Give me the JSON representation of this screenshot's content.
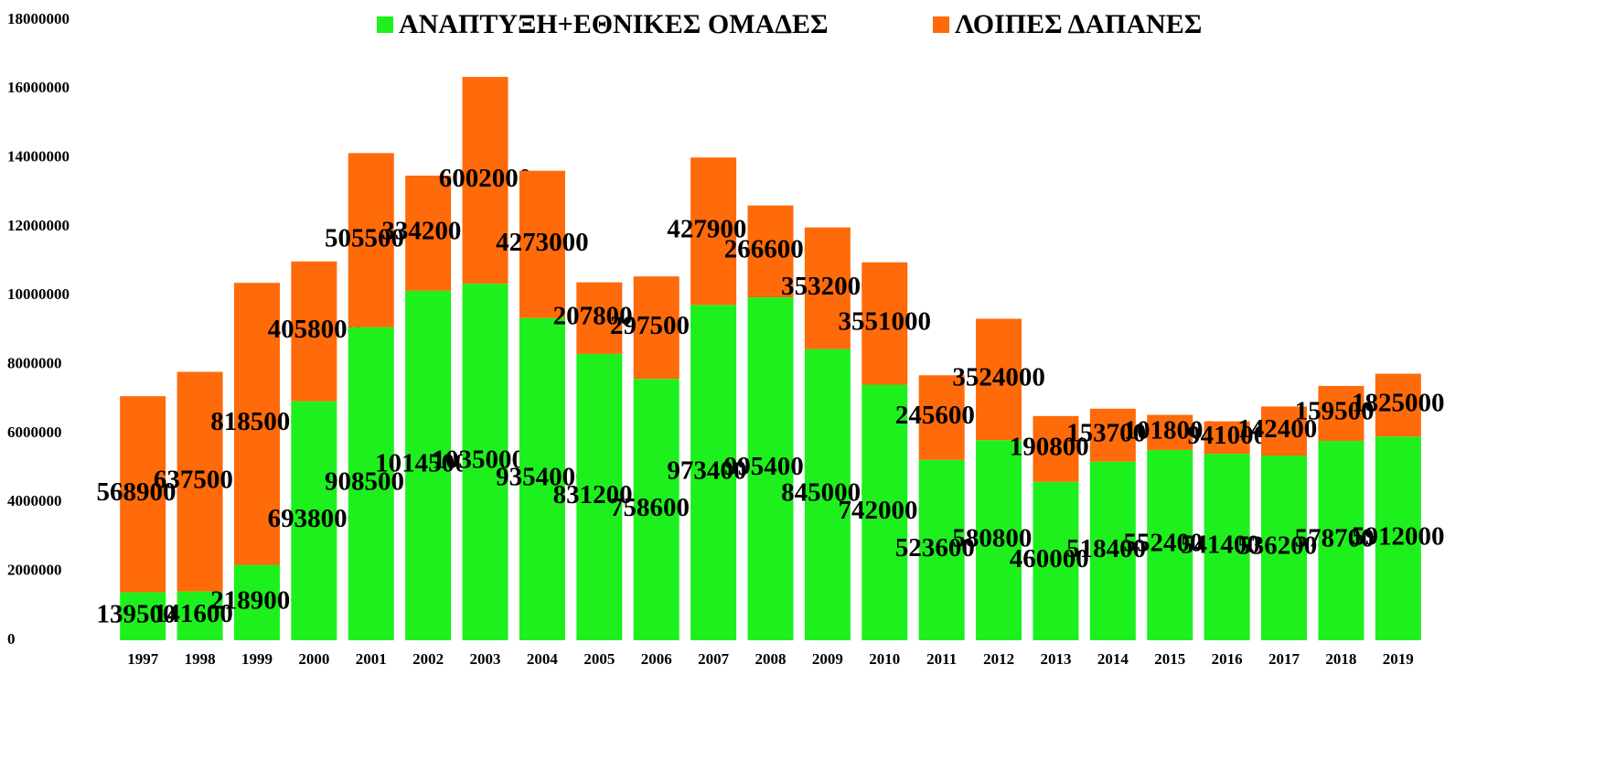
{
  "chart_data": {
    "type": "stacked_bar",
    "categories": [
      "1997",
      "1998",
      "1999",
      "2000",
      "2001",
      "2002",
      "2003",
      "2004",
      "2005",
      "2006",
      "2007",
      "2008",
      "2009",
      "2010",
      "2011",
      "2012",
      "2013",
      "2014",
      "2015",
      "2016",
      "2017",
      "2018",
      "2019"
    ],
    "series": [
      {
        "name": "ΑΝΑΠΤΥΞΗ+ΕΘΝΙΚΕΣ ΟΜΑΔΕΣ",
        "color": "#1ef01e",
        "values": [
          1395000,
          1416000,
          2189000,
          6938000,
          9085000,
          10145000,
          10350000,
          9354000,
          8312000,
          7586000,
          9734000,
          9954000,
          8450000,
          7420000,
          5236000,
          5808000,
          4600000,
          5184000,
          5524000,
          5414000,
          5362000,
          5787000,
          5912000
        ]
      },
      {
        "name": "ΛΟΙΠΕΣ ΔΑΠΑΝΕΣ",
        "color": "#ff6a0a",
        "values": [
          5689000,
          6375000,
          8185000,
          4058000,
          5055000,
          3342000,
          6002000,
          4273000,
          2078000,
          2975000,
          4279000,
          2666000,
          3532000,
          3551000,
          2456000,
          3524000,
          1908000,
          1537000,
          1018000,
          941000,
          1424000,
          1595000,
          1825000
        ]
      }
    ],
    "ylim": [
      0,
      18000000
    ],
    "yticks": [
      0,
      2000000,
      4000000,
      6000000,
      8000000,
      10000000,
      12000000,
      14000000,
      16000000,
      18000000
    ],
    "legend": "top"
  }
}
